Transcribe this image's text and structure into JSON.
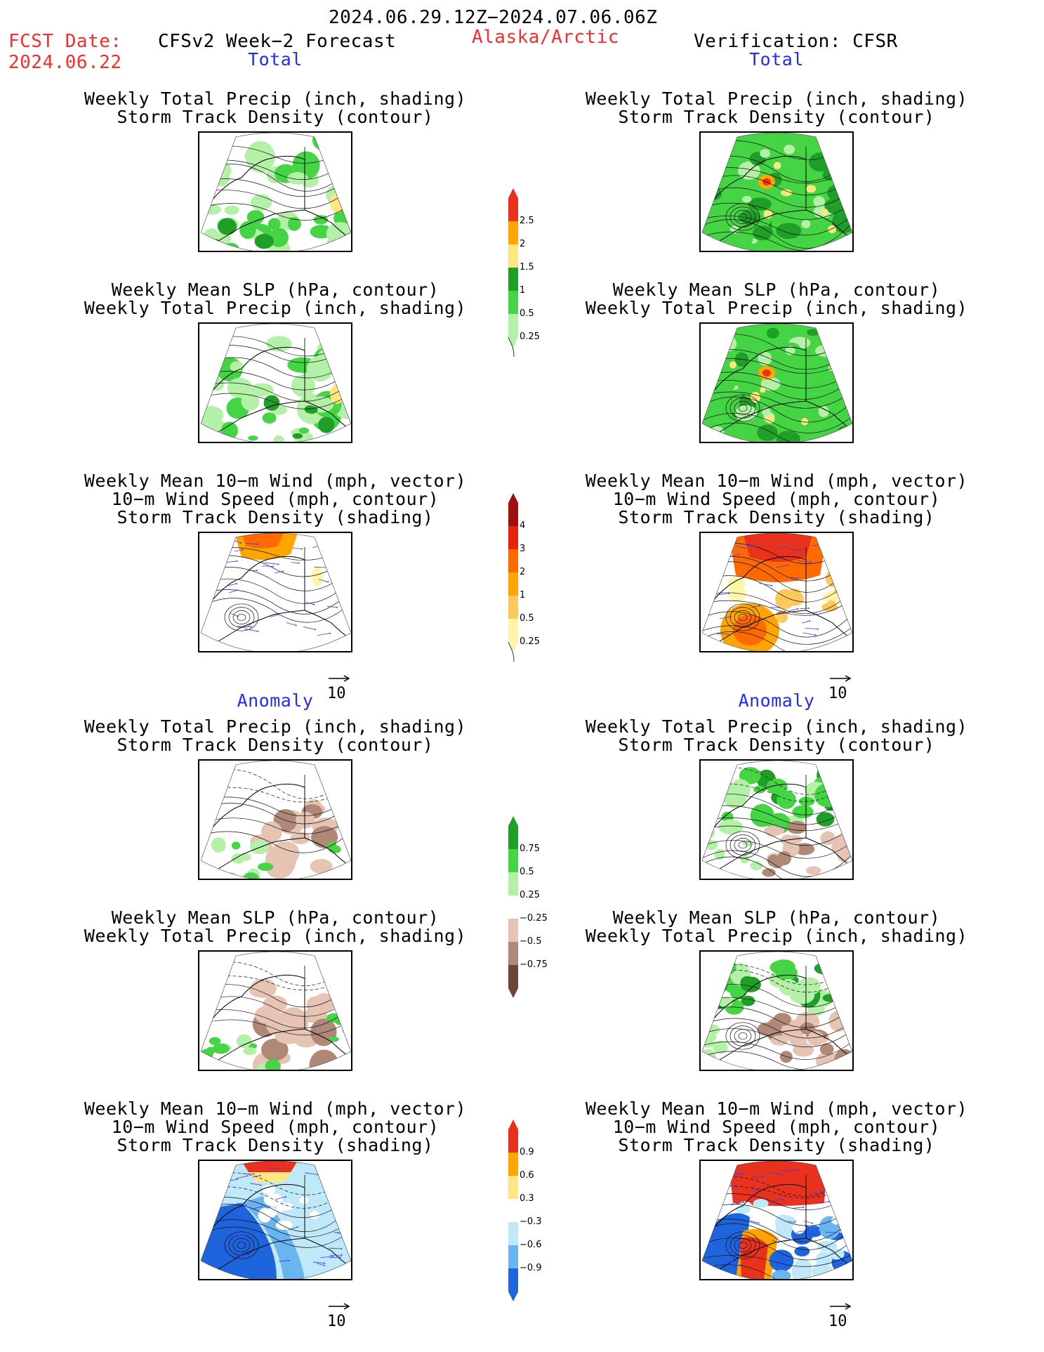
{
  "header": {
    "date_range": "2024.06.29.12Z−2024.07.06.06Z",
    "fcst_label": "FCST Date:",
    "fcst_date": "2024.06.22",
    "model_title": "CFSv2 Week−2 Forecast",
    "region": "Alaska/Arctic",
    "verification": "Verification: CFSR"
  },
  "sections": {
    "total": "Total",
    "anomaly": "Anomaly"
  },
  "titles": {
    "precip_storm": [
      "Weekly Total Precip (inch, shading)",
      "Storm Track Density (contour)"
    ],
    "slp_precip": [
      "Weekly Mean SLP (hPa, contour)",
      "Weekly Total Precip (inch, shading)"
    ],
    "wind": [
      "Weekly Mean 10−m Wind (mph, vector)",
      "10−m Wind Speed (mph, contour)",
      "Storm Track Density (shading)"
    ]
  },
  "vector_ref": "10",
  "colorbars": {
    "precip_total": {
      "labels": [
        "2.5",
        "2",
        "1.5",
        "1",
        "0.5",
        "0.25"
      ],
      "colors": [
        "#e8321e",
        "#ffa500",
        "#ffe680",
        "#1f9e28",
        "#44d444",
        "#b4f0a8"
      ]
    },
    "storm_total": {
      "labels": [
        "4",
        "3",
        "2",
        "1",
        "0.5",
        "0.25"
      ],
      "colors": [
        "#a01010",
        "#e8220a",
        "#ff6a00",
        "#ffa500",
        "#ffc85a",
        "#fff5a8"
      ]
    },
    "precip_anom": {
      "labels": [
        "0.75",
        "0.5",
        "0.25",
        "−0.25",
        "−0.5",
        "−0.75"
      ],
      "colors": [
        "#1f9e28",
        "#44d444",
        "#b4f0a8",
        "#ffffff",
        "#e6c4b4",
        "#b08878",
        "#6e4434"
      ]
    },
    "storm_anom": {
      "labels": [
        "0.9",
        "0.6",
        "0.3",
        "−0.3",
        "−0.6",
        "−0.9"
      ],
      "colors": [
        "#e8321e",
        "#ffa500",
        "#ffe680",
        "#ffffff",
        "#bfe8f8",
        "#6ab4f0",
        "#1e64dc"
      ]
    }
  },
  "map_colors": {
    "light_green": "#b4f0a8",
    "mid_green": "#44d444",
    "dark_green": "#1f9e28",
    "yellow": "#ffe680",
    "orange": "#ffa500",
    "red": "#e8321e",
    "light_brown": "#e6c4b4",
    "mid_brown": "#b08878",
    "light_blue": "#bfe8f8",
    "mid_blue": "#6ab4f0",
    "dark_blue": "#1e64dc",
    "vector_blue": "#3a3aff"
  }
}
